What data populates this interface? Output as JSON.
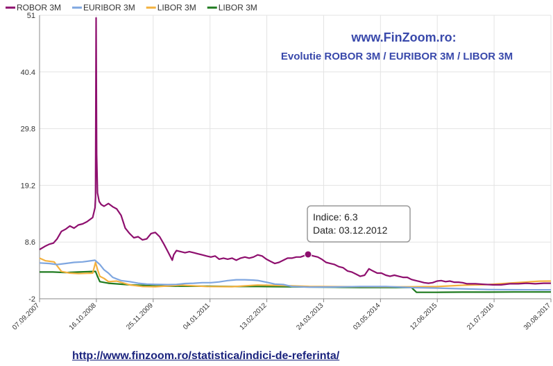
{
  "chart_data": {
    "type": "line",
    "title": "www.FinZoom.ro:",
    "subtitle": "Evolutie ROBOR 3M / EURIBOR 3M / LIBOR 3M",
    "xlabel": "",
    "ylabel": "",
    "ylim": [
      -2,
      51
    ],
    "y_ticks": [
      "51",
      "40.4",
      "29.8",
      "19.2",
      "8.6",
      "-2"
    ],
    "x_ticks": [
      "07.09.2007",
      "16.10.2008",
      "25.11.2009",
      "04.01.2011",
      "13.02.2012",
      "24.03.2013",
      "03.05.2014",
      "12.06.2015",
      "21.07.2016",
      "30.08.2017"
    ],
    "grid": true,
    "legend": "top-left",
    "series": [
      {
        "name": "ROBOR 3M",
        "color": "#8e0f6e",
        "points": [
          [
            "07.09.2007",
            7.2
          ],
          [
            "15.10.2007",
            7.8
          ],
          [
            "15.11.2007",
            8.2
          ],
          [
            "15.12.2007",
            8.4
          ],
          [
            "10.01.2008",
            9.2
          ],
          [
            "10.02.2008",
            10.6
          ],
          [
            "10.03.2008",
            11.0
          ],
          [
            "10.04.2008",
            11.6
          ],
          [
            "10.05.2008",
            11.2
          ],
          [
            "10.06.2008",
            11.8
          ],
          [
            "10.07.2008",
            12.0
          ],
          [
            "10.08.2008",
            12.4
          ],
          [
            "20.09.2008",
            13.2
          ],
          [
            "06.10.2008",
            15.0
          ],
          [
            "10.10.2008",
            17.0
          ],
          [
            "14.10.2008",
            50.5
          ],
          [
            "18.10.2008",
            25.0
          ],
          [
            "24.10.2008",
            17.8
          ],
          [
            "05.11.2008",
            16.2
          ],
          [
            "20.11.2008",
            15.6
          ],
          [
            "10.12.2008",
            15.3
          ],
          [
            "10.01.2009",
            15.8
          ],
          [
            "10.02.2009",
            15.2
          ],
          [
            "10.03.2009",
            14.8
          ],
          [
            "10.04.2009",
            13.6
          ],
          [
            "10.05.2009",
            11.2
          ],
          [
            "10.06.2009",
            10.2
          ],
          [
            "10.07.2009",
            9.4
          ],
          [
            "10.08.2009",
            9.6
          ],
          [
            "10.09.2009",
            9.0
          ],
          [
            "10.10.2009",
            9.2
          ],
          [
            "10.11.2009",
            10.2
          ],
          [
            "10.12.2009",
            10.4
          ],
          [
            "10.01.2010",
            9.6
          ],
          [
            "10.02.2010",
            8.2
          ],
          [
            "10.03.2010",
            6.8
          ],
          [
            "10.04.2010",
            5.2
          ],
          [
            "20.04.2010",
            6.2
          ],
          [
            "10.05.2010",
            7.0
          ],
          [
            "10.06.2010",
            6.8
          ],
          [
            "10.07.2010",
            6.6
          ],
          [
            "10.08.2010",
            6.8
          ],
          [
            "10.09.2010",
            6.6
          ],
          [
            "10.10.2010",
            6.4
          ],
          [
            "10.11.2010",
            6.2
          ],
          [
            "10.12.2010",
            6.0
          ],
          [
            "10.01.2011",
            5.8
          ],
          [
            "10.02.2011",
            6.0
          ],
          [
            "10.03.2011",
            5.4
          ],
          [
            "10.04.2011",
            5.6
          ],
          [
            "10.05.2011",
            5.4
          ],
          [
            "10.06.2011",
            5.6
          ],
          [
            "10.07.2011",
            5.2
          ],
          [
            "10.08.2011",
            5.6
          ],
          [
            "10.09.2011",
            5.8
          ],
          [
            "10.10.2011",
            5.6
          ],
          [
            "10.11.2011",
            5.8
          ],
          [
            "10.12.2011",
            6.2
          ],
          [
            "10.01.2012",
            6.0
          ],
          [
            "10.02.2012",
            5.4
          ],
          [
            "10.03.2012",
            5.0
          ],
          [
            "10.04.2012",
            4.6
          ],
          [
            "10.05.2012",
            4.8
          ],
          [
            "10.06.2012",
            5.2
          ],
          [
            "10.07.2012",
            5.6
          ],
          [
            "10.08.2012",
            5.6
          ],
          [
            "10.09.2012",
            5.8
          ],
          [
            "10.10.2012",
            5.8
          ],
          [
            "03.12.2012",
            6.3
          ],
          [
            "10.01.2013",
            6.0
          ],
          [
            "10.02.2013",
            5.8
          ],
          [
            "10.03.2013",
            5.4
          ],
          [
            "10.04.2013",
            4.8
          ],
          [
            "10.05.2013",
            4.6
          ],
          [
            "10.06.2013",
            4.4
          ],
          [
            "10.07.2013",
            4.0
          ],
          [
            "10.08.2013",
            3.8
          ],
          [
            "10.09.2013",
            3.2
          ],
          [
            "10.10.2013",
            3.0
          ],
          [
            "10.11.2013",
            2.6
          ],
          [
            "10.12.2013",
            2.2
          ],
          [
            "10.01.2014",
            2.4
          ],
          [
            "10.02.2014",
            3.6
          ],
          [
            "10.03.2014",
            3.2
          ],
          [
            "10.04.2014",
            2.8
          ],
          [
            "10.05.2014",
            2.8
          ],
          [
            "10.06.2014",
            2.4
          ],
          [
            "10.07.2014",
            2.2
          ],
          [
            "10.08.2014",
            2.4
          ],
          [
            "10.09.2014",
            2.2
          ],
          [
            "10.10.2014",
            2.0
          ],
          [
            "10.11.2014",
            2.0
          ],
          [
            "10.12.2014",
            1.6
          ],
          [
            "10.01.2015",
            1.4
          ],
          [
            "10.02.2015",
            1.2
          ],
          [
            "10.03.2015",
            1.0
          ],
          [
            "10.04.2015",
            0.9
          ],
          [
            "10.05.2015",
            1.0
          ],
          [
            "10.06.2015",
            1.3
          ],
          [
            "10.07.2015",
            1.4
          ],
          [
            "10.08.2015",
            1.2
          ],
          [
            "10.09.2015",
            1.3
          ],
          [
            "10.10.2015",
            1.1
          ],
          [
            "10.11.2015",
            1.1
          ],
          [
            "10.12.2015",
            1.0
          ],
          [
            "10.01.2016",
            0.8
          ],
          [
            "10.03.2016",
            0.8
          ],
          [
            "10.05.2016",
            0.7
          ],
          [
            "10.07.2016",
            0.6
          ],
          [
            "10.09.2016",
            0.6
          ],
          [
            "10.11.2016",
            0.8
          ],
          [
            "10.01.2017",
            0.8
          ],
          [
            "10.03.2017",
            0.9
          ],
          [
            "10.05.2017",
            0.8
          ],
          [
            "10.07.2017",
            0.9
          ],
          [
            "30.08.2017",
            0.9
          ]
        ]
      },
      {
        "name": "EURIBOR 3M",
        "color": "#7ea6e0",
        "points": [
          [
            "07.09.2007",
            4.7
          ],
          [
            "15.11.2007",
            4.6
          ],
          [
            "10.01.2008",
            4.4
          ],
          [
            "10.03.2008",
            4.6
          ],
          [
            "10.05.2008",
            4.8
          ],
          [
            "10.07.2008",
            4.9
          ],
          [
            "06.10.2008",
            5.2
          ],
          [
            "10.11.2008",
            4.4
          ],
          [
            "10.12.2008",
            3.4
          ],
          [
            "10.01.2009",
            2.8
          ],
          [
            "10.02.2009",
            2.0
          ],
          [
            "10.03.2009",
            1.7
          ],
          [
            "10.04.2009",
            1.4
          ],
          [
            "10.06.2009",
            1.2
          ],
          [
            "10.08.2009",
            0.9
          ],
          [
            "10.10.2009",
            0.75
          ],
          [
            "10.12.2009",
            0.7
          ],
          [
            "10.03.2010",
            0.65
          ],
          [
            "10.05.2010",
            0.68
          ],
          [
            "10.07.2010",
            0.85
          ],
          [
            "10.09.2010",
            0.9
          ],
          [
            "10.11.2010",
            1.0
          ],
          [
            "10.01.2011",
            1.0
          ],
          [
            "10.03.2011",
            1.15
          ],
          [
            "10.05.2011",
            1.4
          ],
          [
            "10.07.2011",
            1.55
          ],
          [
            "10.09.2011",
            1.55
          ],
          [
            "10.11.2011",
            1.48
          ],
          [
            "10.12.2011",
            1.42
          ],
          [
            "10.02.2012",
            1.1
          ],
          [
            "10.04.2012",
            0.75
          ],
          [
            "10.06.2012",
            0.66
          ],
          [
            "10.08.2012",
            0.3
          ],
          [
            "10.12.2012",
            0.18
          ],
          [
            "10.06.2013",
            0.2
          ],
          [
            "10.12.2013",
            0.28
          ],
          [
            "10.06.2014",
            0.3
          ],
          [
            "10.12.2014",
            0.08
          ],
          [
            "10.06.2015",
            -0.01
          ],
          [
            "10.12.2015",
            -0.13
          ],
          [
            "10.06.2016",
            -0.28
          ],
          [
            "10.12.2016",
            -0.31
          ],
          [
            "10.06.2017",
            -0.33
          ],
          [
            "30.08.2017",
            -0.33
          ]
        ]
      },
      {
        "name": "LIBOR 3M",
        "color": "#f3b13e",
        "points": [
          [
            "07.09.2007",
            5.6
          ],
          [
            "20.10.2007",
            5.1
          ],
          [
            "20.12.2007",
            4.9
          ],
          [
            "10.02.2008",
            3.1
          ],
          [
            "10.04.2008",
            2.8
          ],
          [
            "10.06.2008",
            2.7
          ],
          [
            "20.09.2008",
            2.8
          ],
          [
            "10.10.2008",
            4.8
          ],
          [
            "24.10.2008",
            3.5
          ],
          [
            "10.11.2008",
            2.2
          ],
          [
            "10.12.2008",
            1.8
          ],
          [
            "10.01.2009",
            1.2
          ],
          [
            "10.03.2009",
            1.3
          ],
          [
            "10.06.2009",
            0.6
          ],
          [
            "10.09.2009",
            0.3
          ],
          [
            "10.12.2009",
            0.25
          ],
          [
            "10.06.2010",
            0.54
          ],
          [
            "10.12.2010",
            0.3
          ],
          [
            "10.06.2011",
            0.25
          ],
          [
            "10.12.2011",
            0.57
          ],
          [
            "10.06.2012",
            0.46
          ],
          [
            "10.12.2012",
            0.31
          ],
          [
            "10.06.2013",
            0.27
          ],
          [
            "10.12.2013",
            0.24
          ],
          [
            "10.06.2014",
            0.23
          ],
          [
            "10.12.2014",
            0.24
          ],
          [
            "10.06.2015",
            0.28
          ],
          [
            "10.12.2015",
            0.53
          ],
          [
            "10.06.2016",
            0.66
          ],
          [
            "10.12.2016",
            0.98
          ],
          [
            "10.06.2017",
            1.29
          ],
          [
            "30.08.2017",
            1.31
          ]
        ]
      },
      {
        "name": "LIBOR 3M",
        "color": "#1e7a1e",
        "points": [
          [
            "07.09.2007",
            3.0
          ],
          [
            "10.12.2007",
            3.0
          ],
          [
            "10.03.2008",
            2.9
          ],
          [
            "10.06.2008",
            3.0
          ],
          [
            "20.09.2008",
            3.1
          ],
          [
            "10.10.2008",
            3.1
          ],
          [
            "24.10.2008",
            2.2
          ],
          [
            "10.11.2008",
            1.2
          ],
          [
            "10.01.2009",
            0.9
          ],
          [
            "10.06.2009",
            0.6
          ],
          [
            "10.12.2009",
            0.4
          ],
          [
            "10.06.2010",
            0.35
          ],
          [
            "10.12.2010",
            0.35
          ],
          [
            "10.06.2011",
            0.3
          ],
          [
            "10.12.2011",
            0.3
          ],
          [
            "10.06.2012",
            0.25
          ],
          [
            "10.12.2012",
            0.2
          ],
          [
            "10.06.2013",
            0.15
          ],
          [
            "10.12.2013",
            0.1
          ],
          [
            "10.06.2014",
            0.1
          ],
          [
            "10.12.2014",
            0.1
          ],
          [
            "15.01.2015",
            -0.8
          ],
          [
            "10.06.2015",
            -0.8
          ],
          [
            "10.12.2015",
            -0.75
          ],
          [
            "10.06.2016",
            -0.75
          ],
          [
            "10.12.2016",
            -0.73
          ],
          [
            "10.06.2017",
            -0.73
          ],
          [
            "30.08.2017",
            -0.73
          ]
        ]
      }
    ],
    "tooltip": {
      "line1": "Indice: 6.3",
      "line2": "Data: 03.12.2012",
      "point": [
        "03.12.2012",
        6.3
      ]
    }
  },
  "footer": {
    "url": "http://www.finzoom.ro/statistica/indici-de-referinta/"
  }
}
